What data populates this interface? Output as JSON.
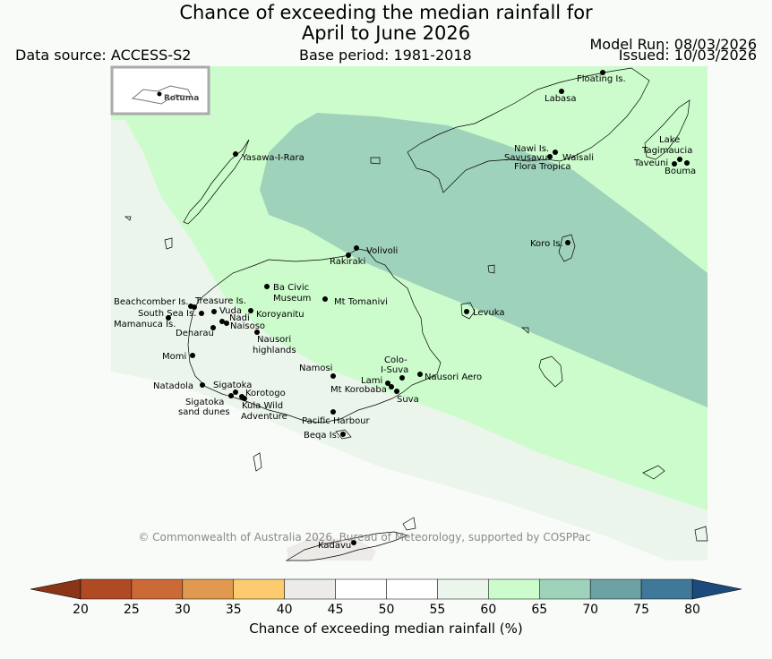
{
  "title_line1": "Chance of exceeding the median rainfall for",
  "title_line2": "April to June 2026",
  "data_source": "Data source: ACCESS-S2",
  "base_period": "Base period: 1981-2018",
  "model_run": "Model Run: 08/03/2026",
  "issued": "Issued: 10/03/2026",
  "inset_label": "Rotuma",
  "copyright": "© Commonwealth of Australia 2026, Bureau of Meteorology, supported by COSPPac",
  "colorbar": {
    "label": "Chance of exceeding median rainfall (%)",
    "ticks": [
      "20",
      "25",
      "30",
      "35",
      "40",
      "45",
      "50",
      "55",
      "60",
      "65",
      "70",
      "75",
      "80"
    ],
    "colors": [
      "#b04a25",
      "#cb6a37",
      "#e0994e",
      "#fccb6f",
      "#ecebe8",
      "#ffffff",
      "#ffffff",
      "#ecf5ec",
      "#ccfccc",
      "#9ed2bb",
      "#6ca2a4",
      "#3f7899"
    ],
    "under_color": "#8a3518",
    "over_color": "#1d4a7c"
  },
  "places": {
    "floating": "Floating Is.",
    "labasa": "Labasa",
    "yasawa": "Yasawa-I-Rara",
    "nawi": "Nawi Is.",
    "savusavu": "Savusavu",
    "waisali": "Waisali",
    "flora": "Flora Tropica",
    "lake1": "Lake",
    "lake2": "Tagimaucia",
    "taveuni": "Taveuni",
    "bouma": "Bouma",
    "koro": "Koro Is.",
    "volivoli": "Volivoli",
    "rakiraki": "Rakiraki",
    "bacivic1": "Ba Civic",
    "bacivic2": "Museum",
    "tomanivi": "Mt Tomanivi",
    "levuka": "Levuka",
    "beachcomber": "Beachcomber Is.",
    "treasure": "Treasure Is.",
    "southsea": "South Sea Is.",
    "vuda": "Vuda",
    "koroyanitu": "Koroyanitu",
    "nadi": "Nadi",
    "mamanuca": "Mamanuca Is.",
    "naisoso": "Naisoso",
    "denarau": "Denarau",
    "nausori1": "Nausori",
    "nausori2": "highlands",
    "momi": "Momi",
    "colo1": "Colo-",
    "colo2": "I-Suva",
    "namosi": "Namosi",
    "nausori_aero": "Nausori Aero",
    "lami": "Lami",
    "korobaba": "Mt Korobaba",
    "suva": "Suva",
    "natadola": "Natadola",
    "sigatoka": "Sigatoka",
    "korotogo": "Korotogo",
    "sigatoka_dunes1": "Sigatoka",
    "sigatoka_dunes2": "sand dunes",
    "kula1": "Kula Wild",
    "kula2": "Adventure",
    "pacific": "Pacific Harbour",
    "beqa": "Beqa Is.",
    "kadavu": "Kadavu"
  }
}
